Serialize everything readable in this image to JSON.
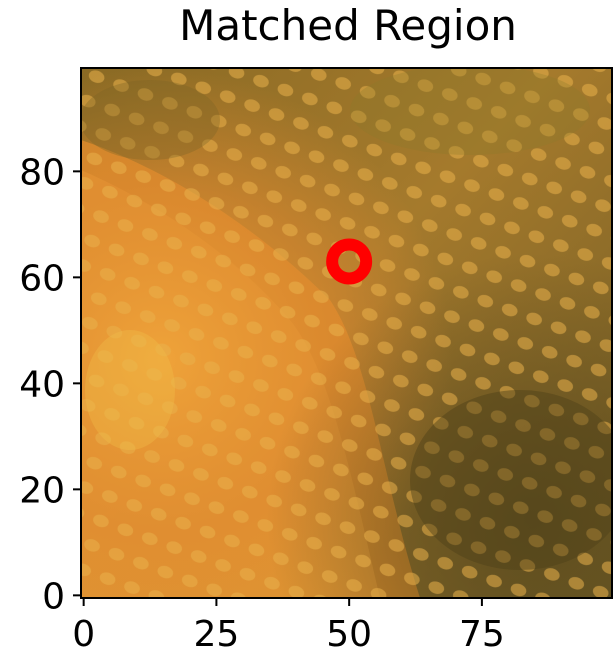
{
  "chart_data": {
    "type": "image",
    "title": "Matched Region",
    "xlabel": "",
    "ylabel": "",
    "image_size": [
      100,
      100
    ],
    "xlim": [
      -0.5,
      99.5
    ],
    "ylim": [
      99.5,
      -0.5
    ],
    "xticks": [
      0,
      25,
      50,
      75
    ],
    "yticks": [
      0,
      20,
      40,
      60,
      80
    ],
    "xtick_labels": [
      "0",
      "25",
      "50",
      "75"
    ],
    "ytick_labels": [
      "0",
      "20",
      "40",
      "60",
      "80"
    ],
    "grid": false,
    "marker": {
      "shape": "ring",
      "x": 50,
      "y": 63,
      "color": "#ff0000"
    },
    "colors": {
      "dark_olive": "#6e5a1e",
      "orange": "#d98a2a",
      "bright_orange": "#f0a43a",
      "yellow": "#e8c24a",
      "red_orange": "#e0703a"
    }
  }
}
